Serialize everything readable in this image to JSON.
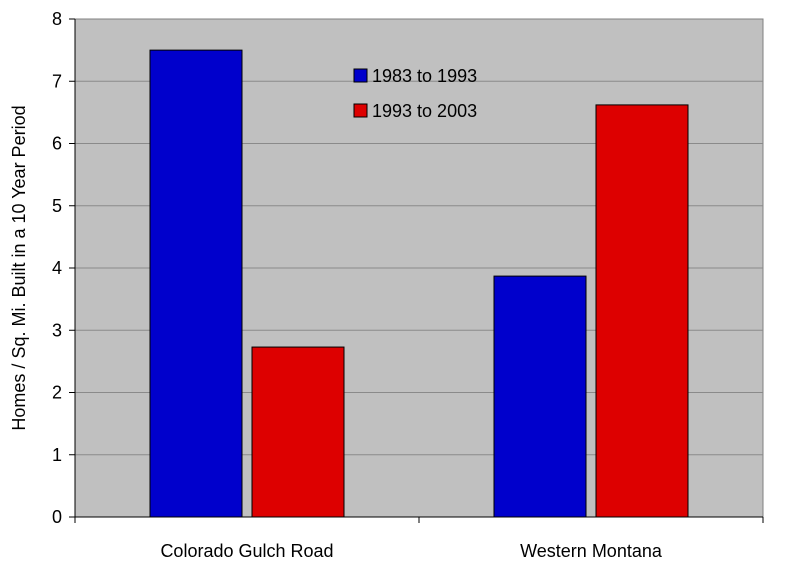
{
  "chart_data": {
    "type": "bar",
    "title": "",
    "xlabel": "",
    "ylabel": "Homes / Sq. Mi. Built in a 10 Year Period",
    "categories": [
      "Colorado Gulch Road",
      "Western Montana"
    ],
    "series": [
      {
        "name": "1983 to 1993",
        "color": "#0000cc",
        "values": [
          7.5,
          3.87
        ]
      },
      {
        "name": "1993 to 2003",
        "color": "#dd0000",
        "values": [
          2.73,
          6.62
        ]
      }
    ],
    "ylim": [
      0,
      8
    ],
    "yticks": [
      0,
      1,
      2,
      3,
      4,
      5,
      6,
      7,
      8
    ],
    "grid": true,
    "legend_position": "top-center",
    "plot_background": "#c0c0c0"
  }
}
